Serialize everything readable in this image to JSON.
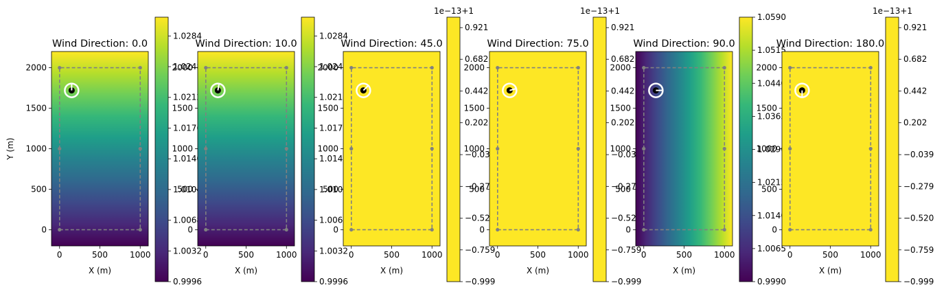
{
  "chart_data": [
    {
      "type": "heatmap",
      "title": "Wind Direction: 0.0",
      "xlabel": "X (m)",
      "ylabel": "Y (m)",
      "xlim": [
        -100,
        1100
      ],
      "ylim": [
        -200,
        2200
      ],
      "xticks": [
        0,
        500,
        1000
      ],
      "yticks": [
        0,
        500,
        1000,
        1500,
        2000
      ],
      "gradient": "y",
      "colorbar": {
        "min": 0.9996,
        "max": 1.0306,
        "ticks": [
          0.9996,
          1.0032,
          1.0068,
          1.0104,
          1.014,
          1.0176,
          1.0212,
          1.0248,
          1.0284
        ],
        "tick_labels": [
          "0.9996",
          "1.0032",
          "1.0068",
          "1.0104",
          "1.0140",
          "1.0176",
          "1.0212",
          "1.0248",
          "1.0284"
        ],
        "offset_text": ""
      },
      "boundary": {
        "x": [
          0,
          1000,
          1000,
          0,
          0
        ],
        "y": [
          0,
          0,
          2000,
          2000,
          0
        ]
      },
      "boundary_points": [
        [
          0,
          0
        ],
        [
          1000,
          0
        ],
        [
          1000,
          1000
        ],
        [
          1000,
          2000
        ],
        [
          0,
          2000
        ],
        [
          0,
          1000
        ]
      ],
      "turbine": {
        "x": 150,
        "y": 1720,
        "direction_deg": 0.0
      }
    },
    {
      "type": "heatmap",
      "title": "Wind Direction: 10.0",
      "xlabel": "X (m)",
      "ylabel": "",
      "xlim": [
        -100,
        1100
      ],
      "ylim": [
        -200,
        2200
      ],
      "xticks": [
        0,
        500,
        1000
      ],
      "yticks": [
        0,
        500,
        1000,
        1500,
        2000
      ],
      "gradient": "y",
      "colorbar": {
        "min": 0.9996,
        "max": 1.0306,
        "ticks": [
          0.9996,
          1.0032,
          1.0068,
          1.0104,
          1.014,
          1.0176,
          1.0212,
          1.0248,
          1.0284
        ],
        "tick_labels": [
          "0.9996",
          "1.0032",
          "1.0068",
          "1.0104",
          "1.0140",
          "1.0176",
          "1.0212",
          "1.0248",
          "1.0284"
        ],
        "offset_text": ""
      },
      "boundary": {
        "x": [
          0,
          1000,
          1000,
          0,
          0
        ],
        "y": [
          0,
          0,
          2000,
          2000,
          0
        ]
      },
      "boundary_points": [
        [
          0,
          0
        ],
        [
          1000,
          0
        ],
        [
          1000,
          1000
        ],
        [
          1000,
          2000
        ],
        [
          0,
          2000
        ],
        [
          0,
          1000
        ]
      ],
      "turbine": {
        "x": 150,
        "y": 1720,
        "direction_deg": 10.0
      }
    },
    {
      "type": "heatmap",
      "title": "Wind Direction: 45.0",
      "xlabel": "X (m)",
      "ylabel": "",
      "xlim": [
        -100,
        1100
      ],
      "ylim": [
        -200,
        2200
      ],
      "xticks": [
        0,
        500,
        1000
      ],
      "yticks": [
        0,
        500,
        1000,
        1500,
        2000
      ],
      "gradient": "none",
      "colorbar": {
        "min": -0.999,
        "max": 1.0,
        "ticks": [
          -0.999,
          -0.759,
          -0.52,
          -0.279,
          -0.039,
          0.202,
          0.442,
          0.682,
          0.921
        ],
        "tick_labels": [
          "−0.999",
          "−0.759",
          "−0.520",
          "−0.279",
          "−0.039",
          "0.202",
          "0.442",
          "0.682",
          "0.921"
        ],
        "offset_text": "1e−13+1"
      },
      "boundary": {
        "x": [
          0,
          1000,
          1000,
          0,
          0
        ],
        "y": [
          0,
          0,
          2000,
          2000,
          0
        ]
      },
      "boundary_points": [
        [
          0,
          0
        ],
        [
          1000,
          0
        ],
        [
          1000,
          1000
        ],
        [
          1000,
          2000
        ],
        [
          0,
          2000
        ],
        [
          0,
          1000
        ]
      ],
      "turbine": {
        "x": 150,
        "y": 1720,
        "direction_deg": 45.0
      }
    },
    {
      "type": "heatmap",
      "title": "Wind Direction: 75.0",
      "xlabel": "X (m)",
      "ylabel": "",
      "xlim": [
        -100,
        1100
      ],
      "ylim": [
        -200,
        2200
      ],
      "xticks": [
        0,
        500,
        1000
      ],
      "yticks": [
        0,
        500,
        1000,
        1500,
        2000
      ],
      "gradient": "none",
      "colorbar": {
        "min": -0.999,
        "max": 1.0,
        "ticks": [
          -0.999,
          -0.759,
          -0.52,
          -0.279,
          -0.039,
          0.202,
          0.442,
          0.682,
          0.921
        ],
        "tick_labels": [
          "−0.999",
          "−0.759",
          "−0.520",
          "−0.279",
          "−0.039",
          "0.202",
          "0.442",
          "0.682",
          "0.921"
        ],
        "offset_text": "1e−13+1"
      },
      "boundary": {
        "x": [
          0,
          1000,
          1000,
          0,
          0
        ],
        "y": [
          0,
          0,
          2000,
          2000,
          0
        ]
      },
      "boundary_points": [
        [
          0,
          0
        ],
        [
          1000,
          0
        ],
        [
          1000,
          1000
        ],
        [
          1000,
          2000
        ],
        [
          0,
          2000
        ],
        [
          0,
          1000
        ]
      ],
      "turbine": {
        "x": 150,
        "y": 1720,
        "direction_deg": 75.0
      }
    },
    {
      "type": "heatmap",
      "title": "Wind Direction: 90.0",
      "xlabel": "X (m)",
      "ylabel": "",
      "xlim": [
        -100,
        1100
      ],
      "ylim": [
        -200,
        2200
      ],
      "xticks": [
        0,
        500,
        1000
      ],
      "yticks": [
        0,
        500,
        1000,
        1500,
        2000
      ],
      "gradient": "x",
      "colorbar": {
        "min": 0.999,
        "max": 1.059,
        "ticks": [
          0.999,
          1.0065,
          1.014,
          1.0215,
          1.029,
          1.0365,
          1.044,
          1.0515,
          1.059
        ],
        "tick_labels": [
          "0.9990",
          "1.0065",
          "1.0140",
          "1.0215",
          "1.0290",
          "1.0365",
          "1.0440",
          "1.0515",
          "1.0590"
        ],
        "offset_text": ""
      },
      "boundary": {
        "x": [
          0,
          1000,
          1000,
          0,
          0
        ],
        "y": [
          0,
          0,
          2000,
          2000,
          0
        ]
      },
      "boundary_points": [
        [
          0,
          0
        ],
        [
          1000,
          0
        ],
        [
          1000,
          1000
        ],
        [
          1000,
          2000
        ],
        [
          0,
          2000
        ],
        [
          0,
          1000
        ]
      ],
      "turbine": {
        "x": 150,
        "y": 1720,
        "direction_deg": 90.0
      }
    },
    {
      "type": "heatmap",
      "title": "Wind Direction: 180.0",
      "xlabel": "X (m)",
      "ylabel": "",
      "xlim": [
        -100,
        1100
      ],
      "ylim": [
        -200,
        2200
      ],
      "xticks": [
        0,
        500,
        1000
      ],
      "yticks": [
        0,
        500,
        1000,
        1500,
        2000
      ],
      "gradient": "none",
      "colorbar": {
        "min": -0.999,
        "max": 1.0,
        "ticks": [
          -0.999,
          -0.759,
          -0.52,
          -0.279,
          -0.039,
          0.202,
          0.442,
          0.682,
          0.921
        ],
        "tick_labels": [
          "−0.999",
          "−0.759",
          "−0.520",
          "−0.279",
          "−0.039",
          "0.202",
          "0.442",
          "0.682",
          "0.921"
        ],
        "offset_text": "1e−13+1"
      },
      "boundary": {
        "x": [
          0,
          1000,
          1000,
          0,
          0
        ],
        "y": [
          0,
          0,
          2000,
          2000,
          0
        ]
      },
      "boundary_points": [
        [
          0,
          0
        ],
        [
          1000,
          0
        ],
        [
          1000,
          1000
        ],
        [
          1000,
          2000
        ],
        [
          0,
          2000
        ],
        [
          0,
          1000
        ]
      ],
      "turbine": {
        "x": 150,
        "y": 1720,
        "direction_deg": 180.0
      }
    }
  ],
  "colors": {
    "viridis": [
      "#440154",
      "#482878",
      "#3e4989",
      "#31688e",
      "#26828e",
      "#1f9e89",
      "#35b779",
      "#6ece58",
      "#b5de2b",
      "#fde725"
    ],
    "constant_field": "#fde725",
    "boundary_line": "#808080",
    "turbine_ring": "#ffffff",
    "turbine_core": "#000000"
  }
}
